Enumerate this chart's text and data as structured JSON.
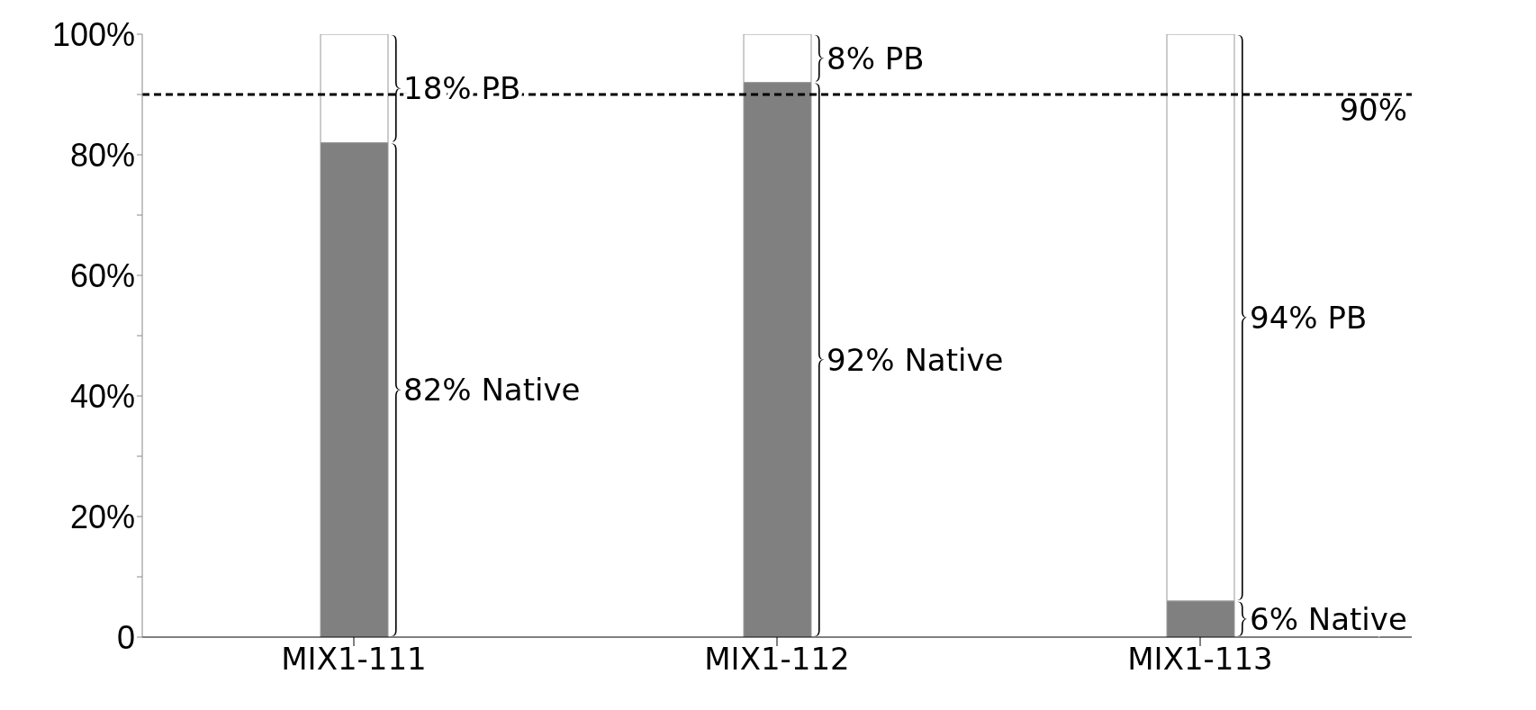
{
  "chart_data": {
    "type": "bar",
    "stacked": true,
    "categories": [
      "MIX1-111",
      "MIX1-112",
      "MIX1-113"
    ],
    "series": [
      {
        "color": "#808080",
        "values": [
          82,
          92,
          6
        ]
      },
      {
        "color": "#ffffff",
        "values": [
          18,
          8,
          94
        ]
      }
    ],
    "annotations": [
      "82% Native",
      "92% Native",
      "6% Native",
      "18% PB",
      "8% PB",
      "94% PB"
    ],
    "ylim": [
      0,
      100
    ],
    "yticks": [
      0,
      {
        "value": 10,
        "label": null
      },
      {
        "value": 20,
        "label": "20%"
      },
      {
        "value": 30,
        "label": null
      },
      {
        "value": 40,
        "label": "40%"
      },
      {
        "value": 50,
        "label": null
      },
      {
        "value": 60,
        "label": "60%"
      },
      {
        "value": 70,
        "label": null
      },
      {
        "value": 80,
        "label": "80%"
      },
      {
        "value": 90,
        "label": null
      },
      {
        "value": 100,
        "label": "100%"
      }
    ],
    "ref_lines": [
      {
        "axis": "y",
        "value": 90,
        "label": "90%",
        "color": "#000000",
        "line_style": "dashed"
      }
    ],
    "grid": false,
    "legend": false
  }
}
